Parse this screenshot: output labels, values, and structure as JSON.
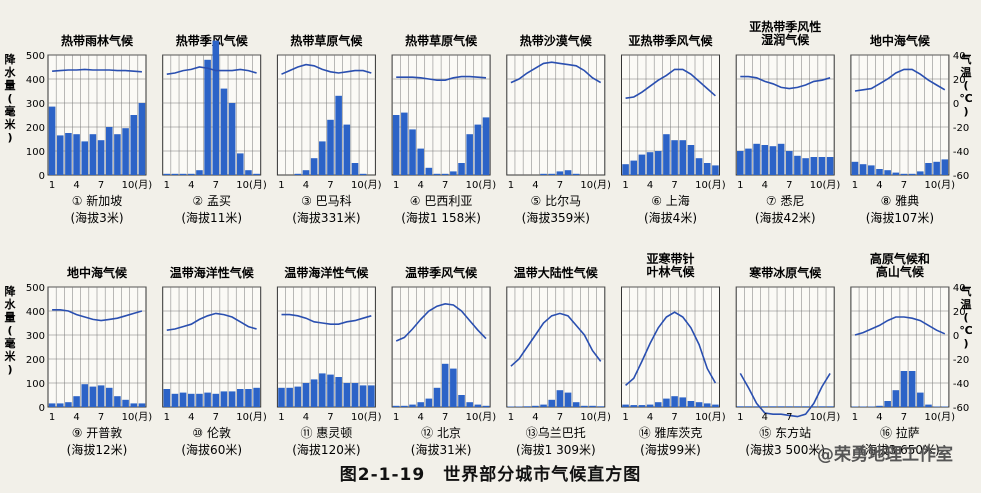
{
  "figure": {
    "caption": "图2-1-19　世界部分城市气候直方图",
    "left_axis_label": "降水量(毫米)",
    "right_axis_label": "气温(℃)",
    "precip_ticks": [
      "0",
      "100",
      "200",
      "300",
      "400",
      "500"
    ],
    "temp_ticks": [
      "-60",
      "-40",
      "-20",
      "0",
      "20",
      "40"
    ],
    "month_ticks": [
      "1",
      "4",
      "7",
      "10(月)"
    ],
    "watermark": "@荣勇地理工作室",
    "colors": {
      "bar": "#2c63c7",
      "line": "#2a4fb0",
      "grid": "#777777"
    }
  },
  "chart_data": [
    {
      "type": "bar+line",
      "title": "热带雨林气候",
      "label": "① 新加坡",
      "elevation": "(海拔3米)",
      "precip": [
        285,
        165,
        175,
        170,
        140,
        170,
        145,
        200,
        170,
        195,
        250,
        300
      ],
      "temp": [
        26.5,
        27,
        27.5,
        27.5,
        28,
        27.5,
        27.5,
        27.5,
        27,
        27,
        26.5,
        26
      ]
    },
    {
      "type": "bar+line",
      "title": "热带季风气候",
      "label": "② 孟买",
      "elevation": "(海拔11米)",
      "precip": [
        5,
        5,
        5,
        5,
        20,
        480,
        610,
        360,
        300,
        90,
        20,
        5
      ],
      "temp": [
        24,
        25,
        27,
        28,
        30,
        29,
        27,
        27,
        27,
        28,
        27,
        25
      ]
    },
    {
      "type": "bar+line",
      "title": "热带草原气候",
      "label": "③ 巴马科",
      "elevation": "(海拔331米)",
      "precip": [
        0,
        0,
        5,
        20,
        70,
        140,
        230,
        330,
        210,
        50,
        5,
        0
      ],
      "temp": [
        24,
        27,
        30,
        32,
        31,
        28,
        26,
        25,
        26,
        27,
        27,
        25
      ]
    },
    {
      "type": "bar+line",
      "title": "热带草原气候",
      "label": "④ 巴西利亚",
      "elevation": "(海拔1 158米)",
      "precip": [
        250,
        260,
        190,
        110,
        30,
        5,
        5,
        15,
        50,
        170,
        210,
        240
      ],
      "temp": [
        21.5,
        21.5,
        21.5,
        21,
        20,
        19,
        19,
        21,
        22,
        22,
        21.5,
        21
      ]
    },
    {
      "type": "bar+line",
      "title": "热带沙漠气候",
      "label": "⑤ 比尔马",
      "elevation": "(海拔359米)",
      "precip": [
        0,
        0,
        0,
        0,
        5,
        5,
        15,
        20,
        5,
        0,
        0,
        0
      ],
      "temp": [
        17,
        20,
        25,
        29,
        33,
        34,
        33,
        32,
        31,
        27,
        21,
        17
      ]
    },
    {
      "type": "bar+line",
      "title": "亚热带季风气候",
      "label": "⑥ 上海",
      "elevation": "(海拔4米)",
      "precip": [
        45,
        60,
        85,
        95,
        100,
        170,
        145,
        145,
        125,
        70,
        50,
        40
      ],
      "temp": [
        4,
        5,
        9,
        14,
        19,
        23,
        28,
        28,
        24,
        18,
        12,
        6
      ]
    },
    {
      "type": "bar+line",
      "title": "亚热带季风性湿润气候",
      "label": "⑦ 悉尼",
      "elevation": "(海拔42米)",
      "precip": [
        100,
        110,
        130,
        125,
        120,
        130,
        100,
        80,
        70,
        75,
        75,
        75
      ],
      "temp": [
        22,
        22,
        21,
        18,
        16,
        13,
        12,
        13,
        15,
        18,
        19,
        21
      ]
    },
    {
      "type": "bar+line",
      "title": "地中海气候",
      "label": "⑧ 雅典",
      "elevation": "(海拔107米)",
      "precip": [
        55,
        45,
        40,
        25,
        20,
        10,
        5,
        5,
        15,
        50,
        55,
        65
      ],
      "temp": [
        10,
        11,
        12,
        16,
        20,
        25,
        28,
        28,
        24,
        19,
        15,
        11
      ]
    },
    {
      "type": "bar+line",
      "title": "地中海气候",
      "label": "⑨ 开普敦",
      "elevation": "(海拔12米)",
      "precip": [
        15,
        15,
        20,
        45,
        95,
        85,
        90,
        80,
        45,
        30,
        15,
        15
      ],
      "temp": [
        21,
        21,
        20,
        17,
        15,
        13,
        12,
        13,
        14,
        16,
        18,
        20
      ]
    },
    {
      "type": "bar+line",
      "title": "温带海洋性气候",
      "label": "⑩ 伦敦",
      "elevation": "(海拔60米)",
      "precip": [
        75,
        55,
        60,
        55,
        55,
        60,
        55,
        65,
        65,
        75,
        75,
        80
      ],
      "temp": [
        4,
        5,
        7,
        9,
        13,
        16,
        18,
        17,
        15,
        11,
        7,
        5
      ]
    },
    {
      "type": "bar+line",
      "title": "温带海洋性气候",
      "label": "⑪ 惠灵顿",
      "elevation": "(海拔120米)",
      "precip": [
        80,
        80,
        85,
        100,
        115,
        140,
        135,
        125,
        100,
        100,
        90,
        90
      ],
      "temp": [
        17,
        17,
        16,
        14,
        11,
        10,
        9,
        9,
        11,
        12,
        14,
        16
      ]
    },
    {
      "type": "bar+line",
      "title": "温带季风气候",
      "label": "⑫ 北京",
      "elevation": "(海拔31米)",
      "precip": [
        5,
        5,
        10,
        20,
        35,
        80,
        180,
        160,
        50,
        20,
        10,
        5
      ],
      "temp": [
        -5,
        -2,
        5,
        13,
        20,
        24,
        26,
        25,
        20,
        12,
        4,
        -3
      ]
    },
    {
      "type": "bar+line",
      "title": "温带大陆性气候",
      "label": "⑬乌兰巴托",
      "elevation": "(海拔1 309米)",
      "precip": [
        2,
        2,
        3,
        5,
        10,
        30,
        70,
        60,
        20,
        5,
        5,
        3
      ],
      "temp": [
        -26,
        -20,
        -10,
        0,
        10,
        16,
        18,
        16,
        8,
        0,
        -13,
        -22
      ]
    },
    {
      "type": "bar+line",
      "title": "亚寒带针叶林气候",
      "label": "⑭ 雅库茨克",
      "elevation": "(海拔99米)",
      "precip": [
        10,
        8,
        8,
        10,
        20,
        35,
        45,
        40,
        25,
        20,
        15,
        10
      ],
      "temp": [
        -42,
        -36,
        -22,
        -7,
        6,
        15,
        19,
        15,
        6,
        -8,
        -28,
        -40
      ]
    },
    {
      "type": "bar+line",
      "title": "寒带冰原气候",
      "label": "⑮ 东方站",
      "elevation": "(海拔3 500米)",
      "precip": [
        3,
        3,
        3,
        3,
        3,
        3,
        3,
        3,
        3,
        3,
        3,
        3
      ],
      "temp": [
        -32,
        -44,
        -57,
        -65,
        -66,
        -66,
        -67,
        -68,
        -66,
        -57,
        -43,
        -32
      ]
    },
    {
      "type": "bar+line",
      "title": "高原气候和高山气候",
      "label": "⑯ 拉萨",
      "elevation": "(海拔3 650米)",
      "precip": [
        2,
        2,
        2,
        5,
        25,
        70,
        150,
        150,
        60,
        10,
        2,
        2
      ],
      "temp": [
        0,
        2,
        5,
        8,
        12,
        15,
        15,
        14,
        12,
        8,
        4,
        1
      ]
    }
  ]
}
